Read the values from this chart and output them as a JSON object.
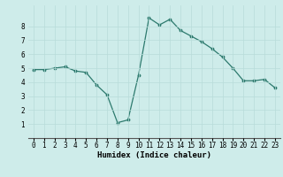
{
  "x": [
    0,
    1,
    2,
    3,
    4,
    5,
    6,
    7,
    8,
    9,
    10,
    11,
    12,
    13,
    14,
    15,
    16,
    17,
    18,
    19,
    20,
    21,
    22,
    23
  ],
  "y": [
    4.9,
    4.9,
    5.0,
    5.1,
    4.8,
    4.7,
    3.8,
    3.1,
    1.1,
    1.3,
    4.5,
    8.6,
    8.1,
    8.5,
    7.7,
    7.3,
    6.9,
    6.4,
    5.8,
    5.0,
    4.1,
    4.1,
    4.2,
    3.6
  ],
  "line_color": "#2d7a6e",
  "marker_color": "#2d7a6e",
  "bg_color": "#ceecea",
  "grid_color": "#b8dcd9",
  "xlabel": "Humidex (Indice chaleur)",
  "ylim": [
    0,
    9.5
  ],
  "xlim": [
    -0.5,
    23.5
  ],
  "yticks": [
    1,
    2,
    3,
    4,
    5,
    6,
    7,
    8
  ],
  "xticks": [
    0,
    1,
    2,
    3,
    4,
    5,
    6,
    7,
    8,
    9,
    10,
    11,
    12,
    13,
    14,
    15,
    16,
    17,
    18,
    19,
    20,
    21,
    22,
    23
  ],
  "xlabel_fontsize": 6.5,
  "tick_fontsize": 5.5
}
